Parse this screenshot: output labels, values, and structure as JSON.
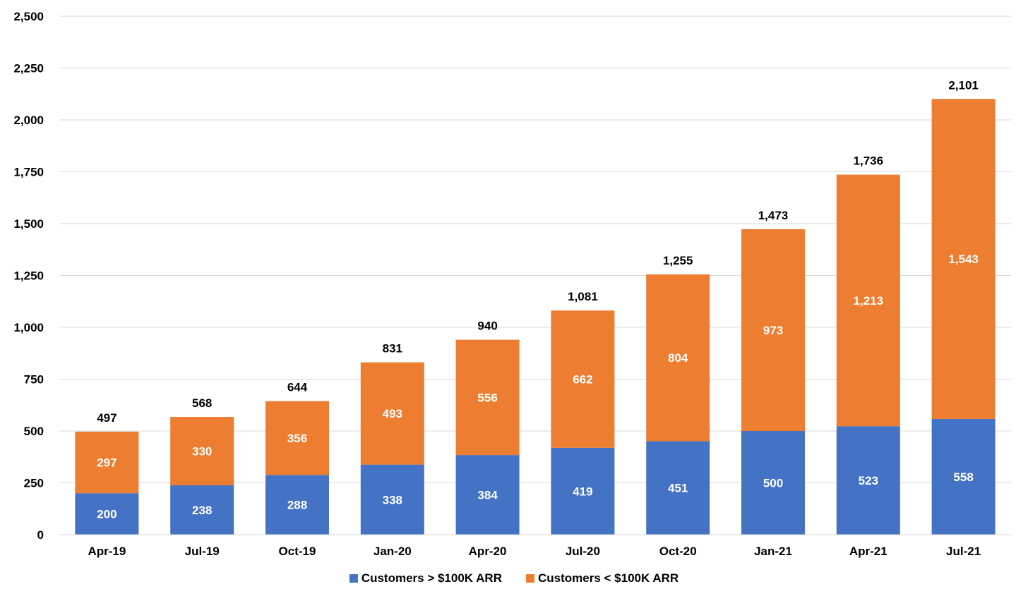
{
  "chart_data": {
    "type": "bar",
    "stacked": true,
    "title": "",
    "xlabel": "",
    "ylabel": "",
    "categories": [
      "Apr-19",
      "Jul-19",
      "Oct-19",
      "Jan-20",
      "Apr-20",
      "Jul-20",
      "Oct-20",
      "Jan-21",
      "Apr-21",
      "Jul-21"
    ],
    "series": [
      {
        "name": "Customers > $100K ARR",
        "color": "#4472C4",
        "values": [
          200,
          238,
          288,
          338,
          384,
          419,
          451,
          500,
          523,
          558
        ]
      },
      {
        "name": "Customers < $100K ARR",
        "color": "#ED7D31",
        "values": [
          297,
          330,
          356,
          493,
          556,
          662,
          804,
          973,
          1213,
          1543
        ]
      }
    ],
    "totals": [
      497,
      568,
      644,
      831,
      940,
      1081,
      1255,
      1473,
      1736,
      2101
    ],
    "ylim": [
      0,
      2500
    ],
    "yticks": [
      0,
      250,
      500,
      750,
      1000,
      1250,
      1500,
      1750,
      2000,
      2250,
      2500
    ],
    "grid": "horizontal",
    "legend_position": "bottom"
  },
  "legend": {
    "items": [
      {
        "label": "Customers > $100K ARR",
        "color": "#4472C4"
      },
      {
        "label": "Customers < $100K ARR",
        "color": "#ED7D31"
      }
    ]
  }
}
